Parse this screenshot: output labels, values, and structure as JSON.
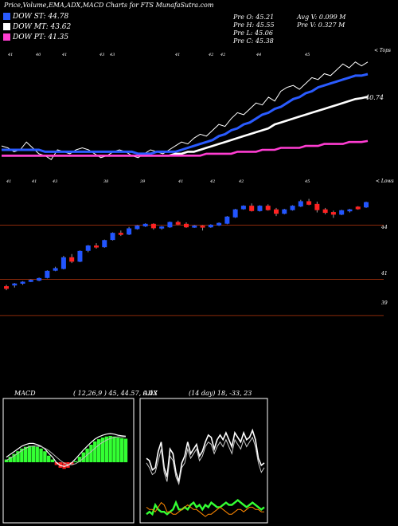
{
  "header": {
    "title": "Price,Volume,EMA,ADX,MACD Charts for FTS MunafaSutra.com",
    "legend": [
      {
        "label": "DOW ST: 44.78",
        "color": "#2a5bff"
      },
      {
        "label": "DOW MT: 43.62",
        "color": "#ffffff"
      },
      {
        "label": "DOW PT: 41.35",
        "color": "#ff3dd2"
      }
    ],
    "stats": {
      "open": "Pre O: 45.21",
      "high": "Pre H: 45.55",
      "low": "Pre L: 45.06",
      "close": "Pre C: 45.38",
      "avg_vol": "Avg V: 0.099 M",
      "prev_vol": "Pre V: 0.327 M"
    }
  },
  "panel_labels": {
    "ema_top": "< Tops",
    "ema_value": "40.74",
    "price_lows": "< Lows",
    "price_levels": [
      "44",
      "41",
      "39"
    ],
    "macd_title": "MACD",
    "macd_params": "( 12,26,9 ) 45, 44.57, 0.43",
    "adx_title": "ADX",
    "adx_params": "(14 day) 18, -33, 23"
  },
  "top_dates": [
    "41",
    "40",
    "41",
    "43",
    "43",
    "41",
    "42",
    "42",
    "44",
    "45"
  ],
  "mid_dates": [
    "41",
    "41",
    "43",
    "38",
    "39",
    "41",
    "42",
    "42",
    "45"
  ],
  "colors": {
    "up": "#2255ff",
    "down": "#ff2222",
    "level_line": "#8b2a0a",
    "macd_fill": "#33ff33",
    "adx_green": "#33ff33",
    "adx_orange": "#ff8800"
  },
  "chart_data": [
    {
      "type": "line",
      "name": "price-ema",
      "series": [
        {
          "name": "price",
          "color": "#ffffff",
          "values": [
            41.1,
            41.0,
            40.8,
            40.9,
            41.3,
            41.0,
            40.7,
            40.6,
            40.4,
            40.9,
            40.8,
            40.7,
            40.9,
            41.0,
            40.9,
            40.7,
            40.5,
            40.6,
            40.8,
            40.9,
            40.8,
            40.6,
            40.5,
            40.7,
            40.9,
            40.8,
            40.7,
            40.9,
            41.1,
            41.3,
            41.2,
            41.5,
            41.7,
            41.6,
            41.9,
            42.2,
            42.1,
            42.5,
            42.8,
            42.7,
            43.0,
            43.3,
            43.2,
            43.6,
            43.4,
            43.9,
            44.1,
            44.2,
            44.0,
            44.3,
            44.6,
            44.5,
            44.8,
            44.7,
            45.0,
            45.3,
            45.1,
            45.4,
            45.2,
            45.4
          ]
        },
        {
          "name": "ema-short",
          "color": "#2a5bff",
          "values": [
            40.9,
            40.9,
            40.9,
            40.9,
            40.9,
            40.9,
            40.9,
            40.8,
            40.8,
            40.8,
            40.8,
            40.8,
            40.8,
            40.8,
            40.8,
            40.8,
            40.8,
            40.8,
            40.8,
            40.8,
            40.8,
            40.8,
            40.7,
            40.7,
            40.7,
            40.8,
            40.8,
            40.8,
            40.8,
            40.9,
            41.0,
            41.1,
            41.2,
            41.3,
            41.4,
            41.6,
            41.7,
            41.9,
            42.0,
            42.2,
            42.3,
            42.5,
            42.7,
            42.8,
            43.0,
            43.1,
            43.3,
            43.5,
            43.6,
            43.8,
            43.9,
            44.1,
            44.2,
            44.3,
            44.4,
            44.5,
            44.6,
            44.7,
            44.7,
            44.78
          ]
        },
        {
          "name": "ema-mid",
          "color": "#ffffff",
          "values": [
            40.6,
            40.6,
            40.6,
            40.6,
            40.6,
            40.6,
            40.6,
            40.6,
            40.6,
            40.6,
            40.6,
            40.6,
            40.6,
            40.6,
            40.6,
            40.6,
            40.6,
            40.6,
            40.6,
            40.6,
            40.6,
            40.6,
            40.6,
            40.6,
            40.6,
            40.6,
            40.6,
            40.6,
            40.7,
            40.7,
            40.8,
            40.8,
            40.9,
            41.0,
            41.1,
            41.2,
            41.3,
            41.4,
            41.5,
            41.6,
            41.7,
            41.8,
            41.9,
            42.0,
            42.2,
            42.3,
            42.4,
            42.5,
            42.6,
            42.7,
            42.8,
            42.9,
            43.0,
            43.1,
            43.2,
            43.3,
            43.4,
            43.5,
            43.55,
            43.62
          ]
        },
        {
          "name": "ema-long",
          "color": "#ff3dd2",
          "values": [
            40.6,
            40.6,
            40.6,
            40.6,
            40.6,
            40.6,
            40.6,
            40.6,
            40.6,
            40.6,
            40.6,
            40.6,
            40.6,
            40.6,
            40.6,
            40.6,
            40.6,
            40.6,
            40.6,
            40.6,
            40.6,
            40.6,
            40.6,
            40.6,
            40.6,
            40.6,
            40.6,
            40.6,
            40.6,
            40.6,
            40.6,
            40.6,
            40.6,
            40.7,
            40.7,
            40.7,
            40.7,
            40.7,
            40.8,
            40.8,
            40.8,
            40.8,
            40.9,
            40.9,
            40.9,
            41.0,
            41.0,
            41.0,
            41.0,
            41.1,
            41.1,
            41.1,
            41.2,
            41.2,
            41.2,
            41.2,
            41.3,
            41.3,
            41.3,
            41.35
          ]
        }
      ],
      "ylim": [
        40.0,
        45.8
      ]
    },
    {
      "type": "candlestick",
      "name": "price-candles",
      "candles": [
        [
          40.6,
          40.7,
          40.4,
          40.5
        ],
        [
          40.7,
          40.8,
          40.55,
          40.75
        ],
        [
          40.8,
          40.9,
          40.7,
          40.85
        ],
        [
          40.9,
          41.0,
          40.85,
          40.95
        ],
        [
          40.95,
          41.1,
          40.9,
          41.05
        ],
        [
          41.1,
          41.5,
          41.05,
          41.45
        ],
        [
          41.5,
          41.7,
          41.45,
          41.6
        ],
        [
          41.6,
          42.3,
          41.55,
          42.2
        ],
        [
          42.2,
          42.4,
          41.9,
          42.0
        ],
        [
          42.0,
          42.6,
          41.95,
          42.55
        ],
        [
          42.6,
          42.9,
          42.5,
          42.85
        ],
        [
          42.85,
          43.0,
          42.7,
          42.8
        ],
        [
          42.8,
          43.2,
          42.75,
          43.15
        ],
        [
          43.2,
          43.6,
          43.15,
          43.55
        ],
        [
          43.55,
          43.7,
          43.4,
          43.5
        ],
        [
          43.5,
          43.9,
          43.45,
          43.8
        ],
        [
          43.8,
          44.0,
          43.75,
          43.95
        ],
        [
          43.95,
          44.1,
          43.9,
          44.05
        ],
        [
          44.05,
          44.1,
          43.75,
          43.85
        ],
        [
          43.85,
          43.95,
          43.75,
          43.9
        ],
        [
          43.9,
          44.2,
          43.85,
          44.15
        ],
        [
          44.15,
          44.25,
          44.0,
          44.05
        ],
        [
          44.05,
          44.15,
          43.85,
          43.9
        ],
        [
          43.9,
          44.0,
          43.85,
          43.95
        ],
        [
          43.95,
          44.0,
          43.7,
          43.9
        ],
        [
          43.9,
          44.05,
          43.85,
          44.0
        ],
        [
          44.0,
          44.15,
          43.95,
          44.1
        ],
        [
          44.1,
          44.5,
          44.05,
          44.45
        ],
        [
          44.45,
          44.9,
          44.4,
          44.85
        ],
        [
          44.9,
          45.1,
          44.85,
          45.05
        ],
        [
          45.05,
          45.2,
          44.75,
          44.8
        ],
        [
          44.8,
          45.1,
          44.75,
          45.05
        ],
        [
          45.05,
          45.15,
          44.8,
          44.85
        ],
        [
          44.85,
          44.95,
          44.5,
          44.65
        ],
        [
          44.65,
          44.9,
          44.6,
          44.85
        ],
        [
          44.85,
          45.1,
          44.8,
          45.05
        ],
        [
          45.05,
          45.4,
          45.0,
          45.3
        ],
        [
          45.3,
          45.45,
          45.1,
          45.15
        ],
        [
          45.15,
          45.3,
          44.7,
          44.85
        ],
        [
          44.85,
          44.95,
          44.6,
          44.7
        ],
        [
          44.7,
          44.8,
          44.4,
          44.6
        ],
        [
          44.6,
          44.85,
          44.55,
          44.8
        ],
        [
          44.8,
          44.9,
          44.7,
          44.85
        ],
        [
          45.0,
          45.05,
          44.85,
          44.9
        ],
        [
          45.0,
          45.3,
          44.95,
          45.25
        ]
      ],
      "levels": [
        44,
        41,
        39
      ],
      "ylim": [
        38.6,
        46.4
      ]
    },
    {
      "type": "area",
      "name": "macd",
      "values": [
        0.05,
        0.1,
        0.15,
        0.2,
        0.25,
        0.28,
        0.3,
        0.3,
        0.28,
        0.25,
        0.2,
        0.12,
        0.05,
        -0.05,
        -0.1,
        -0.12,
        -0.1,
        -0.05,
        0.02,
        0.1,
        0.18,
        0.25,
        0.32,
        0.38,
        0.42,
        0.45,
        0.47,
        0.48,
        0.47,
        0.45,
        0.44,
        0.43
      ],
      "signal": [
        0.02,
        0.06,
        0.1,
        0.15,
        0.2,
        0.24,
        0.27,
        0.28,
        0.28,
        0.27,
        0.24,
        0.2,
        0.14,
        0.08,
        0.02,
        -0.03,
        -0.06,
        -0.06,
        -0.04,
        0.0,
        0.06,
        0.12,
        0.18,
        0.24,
        0.3,
        0.35,
        0.39,
        0.42,
        0.44,
        0.45,
        0.45,
        0.45
      ],
      "ylim": [
        -0.8,
        0.8
      ]
    },
    {
      "type": "line",
      "name": "adx",
      "series": [
        {
          "name": "plus",
          "color": "#ffffff",
          "values": [
            26,
            25,
            21,
            22,
            29,
            33,
            22,
            18,
            30,
            28,
            20,
            16,
            24,
            27,
            33,
            28,
            30,
            32,
            27,
            29,
            33,
            36,
            35,
            30,
            34,
            36,
            34,
            37,
            34,
            31,
            37,
            35,
            33,
            37,
            34,
            35,
            38,
            34,
            26,
            23,
            24
          ]
        },
        {
          "name": "minus",
          "color": "#cccccc",
          "values": [
            24,
            22,
            19,
            20,
            25,
            30,
            20,
            16,
            27,
            25,
            18,
            15,
            22,
            24,
            30,
            26,
            28,
            30,
            25,
            27,
            31,
            33,
            32,
            28,
            31,
            33,
            31,
            34,
            31,
            28,
            34,
            32,
            30,
            34,
            31,
            33,
            35,
            31,
            24,
            20,
            22
          ]
        },
        {
          "name": "adx",
          "color": "#33ff33",
          "values": [
            2,
            3,
            2,
            6,
            4,
            3,
            3,
            2,
            3,
            4,
            7,
            4,
            4,
            5,
            4,
            6,
            7,
            5,
            6,
            4,
            6,
            5,
            7,
            6,
            5,
            5,
            6,
            7,
            6,
            6,
            7,
            8,
            7,
            6,
            5,
            6,
            7,
            6,
            5,
            4,
            5
          ]
        },
        {
          "name": "di",
          "color": "#ff8800",
          "values": [
            5,
            4,
            4,
            3,
            5,
            7,
            6,
            3,
            3,
            2,
            2,
            3,
            4,
            5,
            6,
            5,
            4,
            4,
            3,
            2,
            1,
            2,
            2,
            3,
            4,
            5,
            4,
            3,
            2,
            2,
            3,
            4,
            4,
            3,
            4,
            5,
            5,
            4,
            4,
            3,
            3
          ]
        }
      ],
      "ylim": [
        0,
        50
      ]
    }
  ]
}
